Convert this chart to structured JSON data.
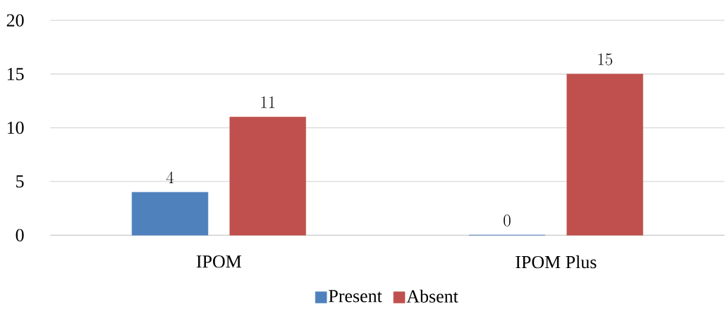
{
  "chart_data": {
    "type": "bar",
    "categories": [
      "IPOM",
      "IPOM Plus"
    ],
    "series": [
      {
        "name": "Present",
        "color": "#4f81bd",
        "values": [
          4,
          0
        ]
      },
      {
        "name": "Absent",
        "color": "#c0504d",
        "values": [
          11,
          15
        ]
      }
    ],
    "ylim": [
      0,
      20
    ],
    "yticks": [
      0,
      5,
      10,
      15,
      20
    ],
    "grid": "y",
    "legend": "bottom",
    "data_labels": true
  }
}
